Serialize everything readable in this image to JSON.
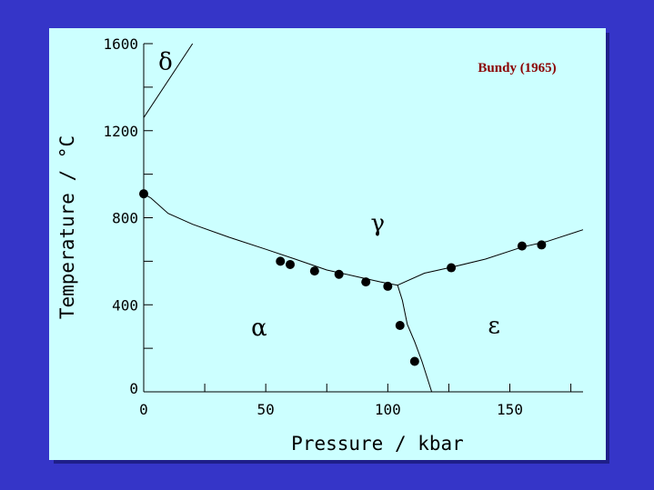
{
  "colors": {
    "background": "#3535c8",
    "panel": "#ccffff",
    "annotation": "#8b0000"
  },
  "chart_data": {
    "type": "line",
    "title": "",
    "xlabel": "Pressure / kbar",
    "ylabel": "Temperature / °C",
    "xlim": [
      0,
      180
    ],
    "ylim": [
      0,
      1600
    ],
    "x_ticks": [
      0,
      50,
      100,
      150
    ],
    "x_tick_labels": [
      "0",
      "50",
      "100",
      "150"
    ],
    "y_ticks": [
      0,
      400,
      800,
      1200,
      1600
    ],
    "y_tick_labels": [
      "0",
      "400",
      "800",
      "1200",
      "1600"
    ],
    "grid": false,
    "series": [
      {
        "kind": "curve",
        "points": [
          [
            0,
            1260
          ],
          [
            20,
            1600
          ]
        ]
      },
      {
        "kind": "curve",
        "points": [
          [
            0,
            910
          ],
          [
            3,
            890
          ],
          [
            10,
            820
          ],
          [
            20,
            770
          ],
          [
            35,
            710
          ],
          [
            50,
            655
          ],
          [
            62,
            610
          ],
          [
            75,
            560
          ],
          [
            87,
            530
          ],
          [
            97,
            505
          ],
          [
            104,
            490
          ]
        ]
      },
      {
        "kind": "curve",
        "points": [
          [
            104,
            490
          ],
          [
            115,
            545
          ],
          [
            127,
            575
          ],
          [
            140,
            610
          ],
          [
            155,
            665
          ],
          [
            165,
            690
          ],
          [
            180,
            745
          ]
        ]
      },
      {
        "kind": "curve",
        "points": [
          [
            104,
            490
          ],
          [
            106,
            420
          ],
          [
            108,
            310
          ],
          [
            111,
            230
          ],
          [
            114,
            140
          ],
          [
            118,
            0
          ]
        ]
      },
      {
        "kind": "points",
        "points": [
          [
            0,
            910
          ],
          [
            56,
            600
          ],
          [
            60,
            585
          ],
          [
            70,
            555
          ],
          [
            80,
            540
          ],
          [
            91,
            505
          ],
          [
            100,
            485
          ],
          [
            105,
            305
          ],
          [
            111,
            140
          ],
          [
            126,
            570
          ],
          [
            155,
            670
          ],
          [
            163,
            675
          ]
        ]
      }
    ],
    "annotations": [
      {
        "text": "δ",
        "x": 6,
        "y": 1480
      },
      {
        "text": "γ",
        "x": 93,
        "y": 740
      },
      {
        "text": "α",
        "x": 44,
        "y": 260
      },
      {
        "text": "ε",
        "x": 141,
        "y": 270
      },
      {
        "text": "Bundy (1965)",
        "x": 153,
        "y": 1470
      }
    ]
  }
}
